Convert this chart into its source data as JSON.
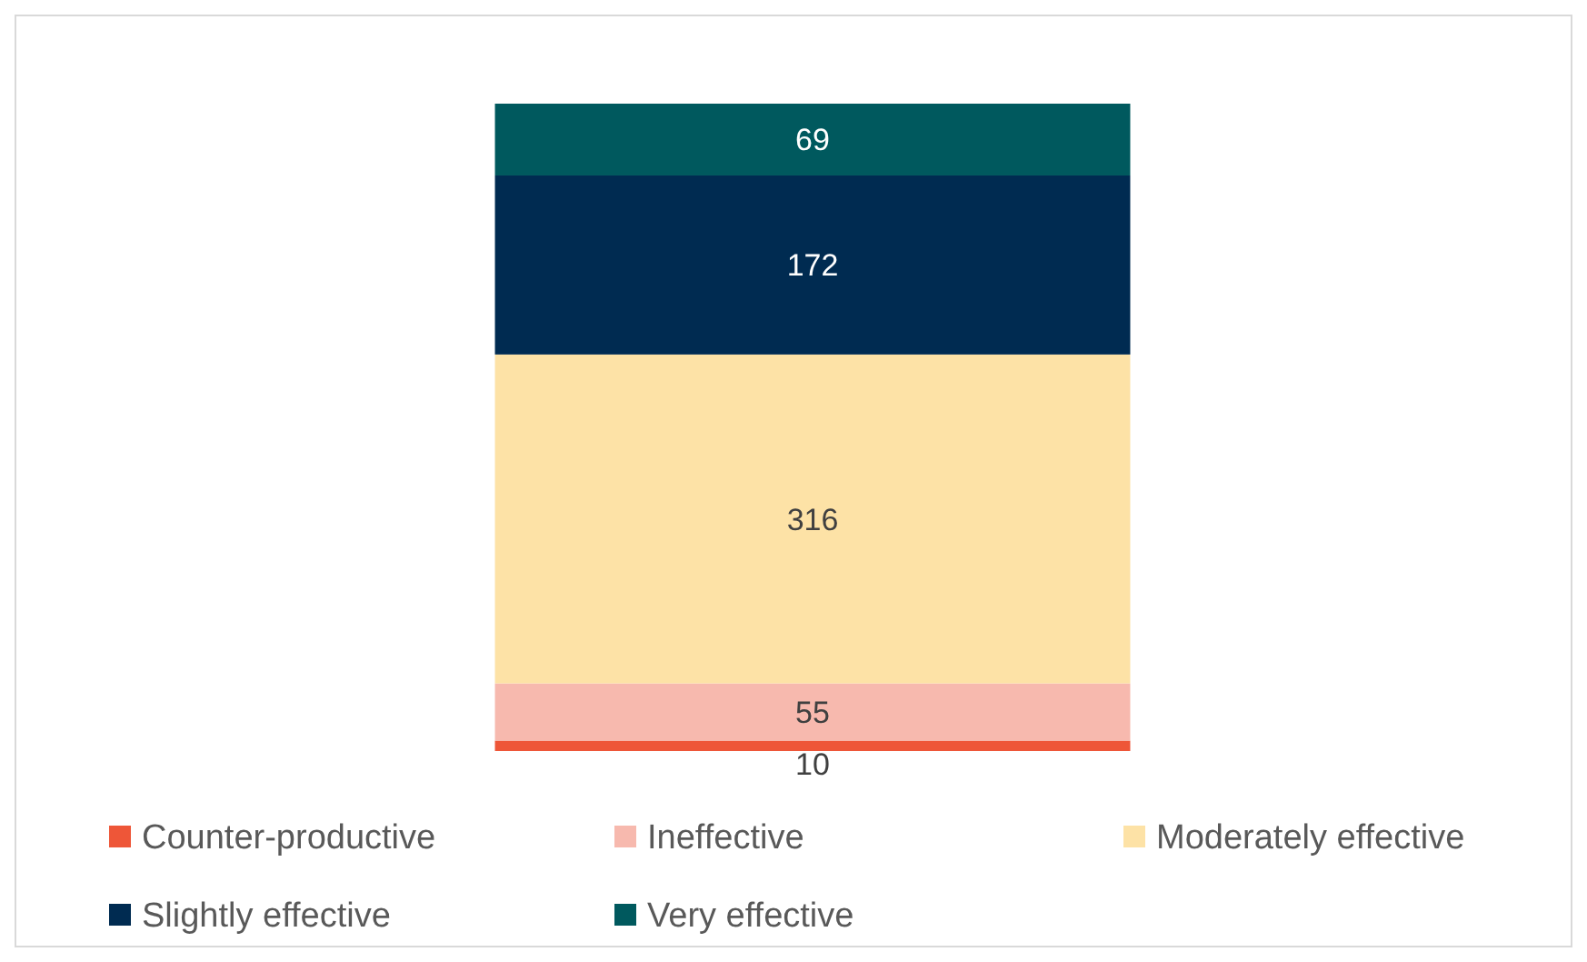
{
  "chart_data": {
    "type": "bar",
    "stacked": true,
    "categories": [
      null
    ],
    "data_labels": true,
    "legend": "bottom",
    "series": [
      {
        "name": "Counter-productive",
        "color": "#ee5638",
        "values": [
          10
        ]
      },
      {
        "name": "Ineffective",
        "color": "#f7b9ae",
        "values": [
          55
        ]
      },
      {
        "name": "Moderately effective",
        "color": "#fde2a6",
        "values": [
          316
        ]
      },
      {
        "name": "Slightly effective",
        "color": "#002b51",
        "values": [
          172
        ]
      },
      {
        "name": "Very effective",
        "color": "#00595e",
        "values": [
          69
        ]
      }
    ]
  }
}
